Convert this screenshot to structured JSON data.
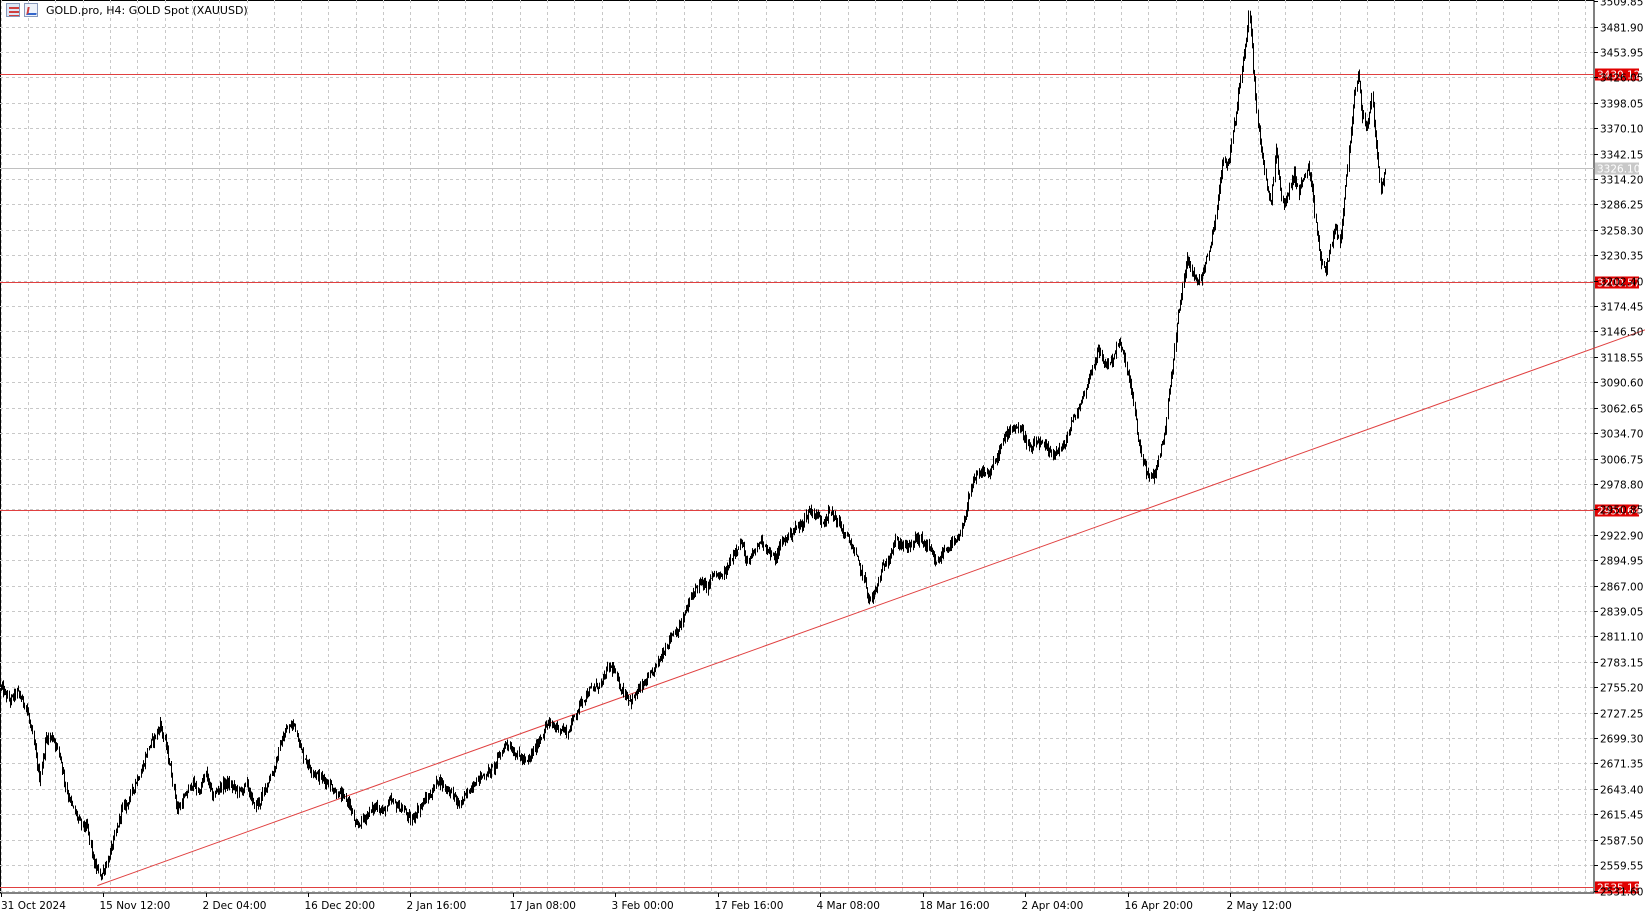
{
  "header": {
    "symbol_title": "GOLD.pro, H4:  GOLD Spot (XAUUSD)",
    "icons": [
      "grid-menu-icon",
      "chart-window-icon"
    ]
  },
  "colors": {
    "background": "#ffffff",
    "grid": "#c8c8c8",
    "candles": "#000000",
    "level_lines": "#e04040",
    "level_badge": "#e00000",
    "current_price_badge": "#c8c8c8"
  },
  "chart_data": {
    "type": "candlestick",
    "timeframe": "H4",
    "ylim": [
      2530,
      3510
    ],
    "y_ticks": [
      "3509.85",
      "3481.90",
      "3453.95",
      "3426.05",
      "3398.05",
      "3370.10",
      "3342.15",
      "3314.20",
      "3286.25",
      "3258.30",
      "3230.35",
      "3202.40",
      "3174.45",
      "3146.50",
      "3118.55",
      "3090.60",
      "3062.65",
      "3034.70",
      "3006.75",
      "2978.80",
      "2950.85",
      "2922.90",
      "2894.95",
      "2867.00",
      "2839.05",
      "2811.10",
      "2783.15",
      "2755.20",
      "2727.25",
      "2699.30",
      "2671.35",
      "2643.40",
      "2615.45",
      "2587.50",
      "2559.55",
      "2531.60"
    ],
    "x_ticks": [
      {
        "label": "31 Oct 2024",
        "index": 0
      },
      {
        "label": "15 Nov 12:00",
        "index": 90
      },
      {
        "label": "2 Dec 04:00",
        "index": 180
      },
      {
        "label": "16 Dec 20:00",
        "index": 270
      },
      {
        "label": "2 Jan 16:00",
        "index": 360
      },
      {
        "label": "17 Jan 08:00",
        "index": 450
      },
      {
        "label": "3 Feb 00:00",
        "index": 540
      },
      {
        "label": "17 Feb 16:00",
        "index": 630
      },
      {
        "label": "4 Mar 08:00",
        "index": 720
      },
      {
        "label": "18 Mar 16:00",
        "index": 810
      },
      {
        "label": "2 Apr 04:00",
        "index": 900
      },
      {
        "label": "16 Apr 20:00",
        "index": 990
      },
      {
        "label": "2 May 12:00",
        "index": 1080
      }
    ],
    "bar_count_total": 1400,
    "anchors": [
      [
        0,
        2755
      ],
      [
        8,
        2740
      ],
      [
        14,
        2750
      ],
      [
        22,
        2735
      ],
      [
        28,
        2700
      ],
      [
        34,
        2655
      ],
      [
        40,
        2700
      ],
      [
        46,
        2700
      ],
      [
        52,
        2680
      ],
      [
        58,
        2640
      ],
      [
        64,
        2620
      ],
      [
        70,
        2605
      ],
      [
        76,
        2600
      ],
      [
        82,
        2560
      ],
      [
        88,
        2548
      ],
      [
        94,
        2565
      ],
      [
        100,
        2590
      ],
      [
        106,
        2620
      ],
      [
        112,
        2630
      ],
      [
        118,
        2650
      ],
      [
        124,
        2665
      ],
      [
        130,
        2690
      ],
      [
        136,
        2702
      ],
      [
        140,
        2715
      ],
      [
        145,
        2690
      ],
      [
        150,
        2660
      ],
      [
        155,
        2620
      ],
      [
        162,
        2635
      ],
      [
        168,
        2650
      ],
      [
        174,
        2640
      ],
      [
        180,
        2660
      ],
      [
        186,
        2635
      ],
      [
        192,
        2645
      ],
      [
        198,
        2650
      ],
      [
        204,
        2645
      ],
      [
        210,
        2640
      ],
      [
        216,
        2648
      ],
      [
        222,
        2625
      ],
      [
        228,
        2630
      ],
      [
        234,
        2650
      ],
      [
        240,
        2665
      ],
      [
        246,
        2695
      ],
      [
        252,
        2710
      ],
      [
        258,
        2715
      ],
      [
        264,
        2685
      ],
      [
        270,
        2670
      ],
      [
        276,
        2660
      ],
      [
        282,
        2655
      ],
      [
        288,
        2650
      ],
      [
        294,
        2640
      ],
      [
        300,
        2635
      ],
      [
        306,
        2628
      ],
      [
        312,
        2600
      ],
      [
        318,
        2610
      ],
      [
        324,
        2618
      ],
      [
        330,
        2625
      ],
      [
        336,
        2618
      ],
      [
        342,
        2630
      ],
      [
        348,
        2625
      ],
      [
        354,
        2620
      ],
      [
        360,
        2608
      ],
      [
        366,
        2620
      ],
      [
        372,
        2630
      ],
      [
        378,
        2638
      ],
      [
        384,
        2655
      ],
      [
        390,
        2645
      ],
      [
        396,
        2640
      ],
      [
        402,
        2625
      ],
      [
        408,
        2635
      ],
      [
        414,
        2648
      ],
      [
        420,
        2655
      ],
      [
        426,
        2660
      ],
      [
        432,
        2665
      ],
      [
        438,
        2680
      ],
      [
        444,
        2695
      ],
      [
        450,
        2685
      ],
      [
        456,
        2678
      ],
      [
        462,
        2672
      ],
      [
        468,
        2685
      ],
      [
        474,
        2700
      ],
      [
        480,
        2715
      ],
      [
        486,
        2712
      ],
      [
        492,
        2710
      ],
      [
        498,
        2705
      ],
      [
        504,
        2725
      ],
      [
        510,
        2740
      ],
      [
        516,
        2750
      ],
      [
        522,
        2755
      ],
      [
        528,
        2760
      ],
      [
        534,
        2778
      ],
      [
        538,
        2775
      ],
      [
        542,
        2760
      ],
      [
        548,
        2748
      ],
      [
        554,
        2740
      ],
      [
        560,
        2752
      ],
      [
        566,
        2760
      ],
      [
        572,
        2770
      ],
      [
        578,
        2785
      ],
      [
        584,
        2800
      ],
      [
        590,
        2815
      ],
      [
        596,
        2820
      ],
      [
        602,
        2840
      ],
      [
        608,
        2860
      ],
      [
        614,
        2870
      ],
      [
        620,
        2865
      ],
      [
        626,
        2880
      ],
      [
        632,
        2875
      ],
      [
        638,
        2885
      ],
      [
        644,
        2905
      ],
      [
        650,
        2915
      ],
      [
        656,
        2890
      ],
      [
        662,
        2905
      ],
      [
        668,
        2918
      ],
      [
        674,
        2905
      ],
      [
        680,
        2895
      ],
      [
        686,
        2915
      ],
      [
        692,
        2922
      ],
      [
        698,
        2930
      ],
      [
        704,
        2935
      ],
      [
        710,
        2950
      ],
      [
        716,
        2945
      ],
      [
        722,
        2938
      ],
      [
        728,
        2948
      ],
      [
        734,
        2940
      ],
      [
        740,
        2925
      ],
      [
        746,
        2915
      ],
      [
        752,
        2895
      ],
      [
        758,
        2875
      ],
      [
        763,
        2850
      ],
      [
        768,
        2860
      ],
      [
        774,
        2885
      ],
      [
        780,
        2900
      ],
      [
        786,
        2915
      ],
      [
        792,
        2912
      ],
      [
        798,
        2908
      ],
      [
        804,
        2920
      ],
      [
        810,
        2915
      ],
      [
        816,
        2905
      ],
      [
        822,
        2890
      ],
      [
        828,
        2905
      ],
      [
        834,
        2912
      ],
      [
        840,
        2915
      ],
      [
        846,
        2935
      ],
      [
        850,
        2965
      ],
      [
        856,
        2985
      ],
      [
        862,
        2992
      ],
      [
        868,
        2990
      ],
      [
        874,
        3005
      ],
      [
        880,
        3025
      ],
      [
        886,
        3040
      ],
      [
        892,
        3042
      ],
      [
        898,
        3035
      ],
      [
        904,
        3015
      ],
      [
        910,
        3025
      ],
      [
        916,
        3020
      ],
      [
        922,
        3012
      ],
      [
        928,
        3015
      ],
      [
        934,
        3020
      ],
      [
        940,
        3045
      ],
      [
        946,
        3060
      ],
      [
        952,
        3080
      ],
      [
        958,
        3105
      ],
      [
        964,
        3125
      ],
      [
        970,
        3110
      ],
      [
        976,
        3115
      ],
      [
        982,
        3135
      ],
      [
        986,
        3120
      ],
      [
        990,
        3100
      ],
      [
        994,
        3075
      ],
      [
        998,
        3035
      ],
      [
        1002,
        3010
      ],
      [
        1008,
        2985
      ],
      [
        1014,
        2990
      ],
      [
        1018,
        3015
      ],
      [
        1022,
        3030
      ],
      [
        1026,
        3080
      ],
      [
        1030,
        3115
      ],
      [
        1034,
        3165
      ],
      [
        1038,
        3195
      ],
      [
        1042,
        3230
      ],
      [
        1046,
        3215
      ],
      [
        1050,
        3200
      ],
      [
        1054,
        3205
      ],
      [
        1058,
        3225
      ],
      [
        1062,
        3240
      ],
      [
        1066,
        3265
      ],
      [
        1070,
        3305
      ],
      [
        1074,
        3335
      ],
      [
        1078,
        3330
      ],
      [
        1082,
        3365
      ],
      [
        1086,
        3395
      ],
      [
        1090,
        3440
      ],
      [
        1094,
        3470
      ],
      [
        1096,
        3500
      ],
      [
        1098,
        3475
      ],
      [
        1101,
        3420
      ],
      [
        1104,
        3375
      ],
      [
        1108,
        3340
      ],
      [
        1112,
        3300
      ],
      [
        1116,
        3290
      ],
      [
        1120,
        3350
      ],
      [
        1124,
        3300
      ],
      [
        1128,
        3285
      ],
      [
        1132,
        3305
      ],
      [
        1136,
        3320
      ],
      [
        1140,
        3300
      ],
      [
        1144,
        3315
      ],
      [
        1148,
        3325
      ],
      [
        1152,
        3300
      ],
      [
        1156,
        3255
      ],
      [
        1160,
        3220
      ],
      [
        1164,
        3215
      ],
      [
        1168,
        3240
      ],
      [
        1172,
        3260
      ],
      [
        1176,
        3245
      ],
      [
        1180,
        3290
      ],
      [
        1184,
        3345
      ],
      [
        1188,
        3395
      ],
      [
        1192,
        3428
      ],
      [
        1196,
        3385
      ],
      [
        1200,
        3370
      ],
      [
        1204,
        3405
      ],
      [
        1208,
        3350
      ],
      [
        1212,
        3305
      ],
      [
        1216,
        3320
      ]
    ],
    "horizontal_levels": [
      {
        "label": "3430.12",
        "value": 3430.12
      },
      {
        "label": "3200.57",
        "value": 3200.57
      },
      {
        "label": "2950.64",
        "value": 2950.64
      },
      {
        "label": "2535.18",
        "value": 2535.18
      }
    ],
    "current_price": {
      "label": "3326.10",
      "value": 3326.1
    },
    "trendline": {
      "from": {
        "index": 85,
        "value": 2537
      },
      "to": {
        "index": 1457,
        "value": 3154
      }
    }
  }
}
